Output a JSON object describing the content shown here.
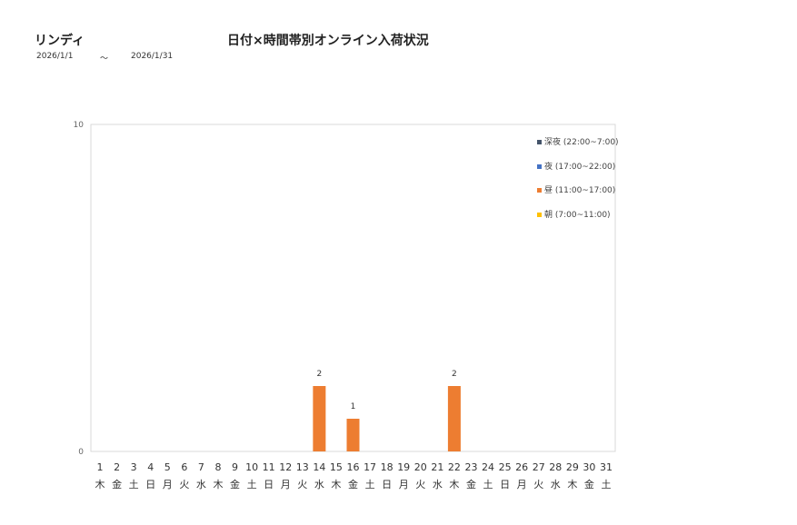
{
  "header": {
    "brand": "リンディ",
    "title": "日付×時間帯別オンライン入荷状況",
    "date_from": "2026/1/1",
    "separator": "～",
    "date_to": "2026/1/31"
  },
  "chart_data": {
    "type": "bar",
    "stacked": true,
    "ylim": [
      0,
      10
    ],
    "yticks": [
      "0",
      "10"
    ],
    "grid": false,
    "legend_position": "top-right",
    "days": [
      "1",
      "2",
      "3",
      "4",
      "5",
      "6",
      "7",
      "8",
      "9",
      "10",
      "11",
      "12",
      "13",
      "14",
      "15",
      "16",
      "17",
      "18",
      "19",
      "20",
      "21",
      "22",
      "23",
      "24",
      "25",
      "26",
      "27",
      "28",
      "29",
      "30",
      "31"
    ],
    "weekdays": [
      "木",
      "金",
      "土",
      "日",
      "月",
      "火",
      "水",
      "木",
      "金",
      "土",
      "日",
      "月",
      "火",
      "水",
      "木",
      "金",
      "土",
      "日",
      "月",
      "火",
      "水",
      "木",
      "金",
      "土",
      "日",
      "月",
      "火",
      "水",
      "木",
      "金",
      "土"
    ],
    "series": [
      {
        "name": "深夜 (22:00~7:00)",
        "color": "#44546a",
        "values": [
          0,
          0,
          0,
          0,
          0,
          0,
          0,
          0,
          0,
          0,
          0,
          0,
          0,
          0,
          0,
          0,
          0,
          0,
          0,
          0,
          0,
          0,
          0,
          0,
          0,
          0,
          0,
          0,
          0,
          0,
          0
        ]
      },
      {
        "name": "夜 (17:00~22:00)",
        "color": "#4472c4",
        "values": [
          0,
          0,
          0,
          0,
          0,
          0,
          0,
          0,
          0,
          0,
          0,
          0,
          0,
          0,
          0,
          0,
          0,
          0,
          0,
          0,
          0,
          0,
          0,
          0,
          0,
          0,
          0,
          0,
          0,
          0,
          0
        ]
      },
      {
        "name": "昼 (11:00~17:00)",
        "color": "#ed7d31",
        "values": [
          0,
          0,
          0,
          0,
          0,
          0,
          0,
          0,
          0,
          0,
          0,
          0,
          0,
          2,
          0,
          1,
          0,
          0,
          0,
          0,
          0,
          2,
          0,
          0,
          0,
          0,
          0,
          0,
          0,
          0,
          0
        ]
      },
      {
        "name": "朝 (7:00~11:00)",
        "color": "#ffc000",
        "values": [
          0,
          0,
          0,
          0,
          0,
          0,
          0,
          0,
          0,
          0,
          0,
          0,
          0,
          0,
          0,
          0,
          0,
          0,
          0,
          0,
          0,
          0,
          0,
          0,
          0,
          0,
          0,
          0,
          0,
          0,
          0
        ]
      }
    ],
    "totals": [
      0,
      0,
      0,
      0,
      0,
      0,
      0,
      0,
      0,
      0,
      0,
      0,
      0,
      2,
      0,
      1,
      0,
      0,
      0,
      0,
      0,
      2,
      0,
      0,
      0,
      0,
      0,
      0,
      0,
      0,
      0
    ]
  }
}
